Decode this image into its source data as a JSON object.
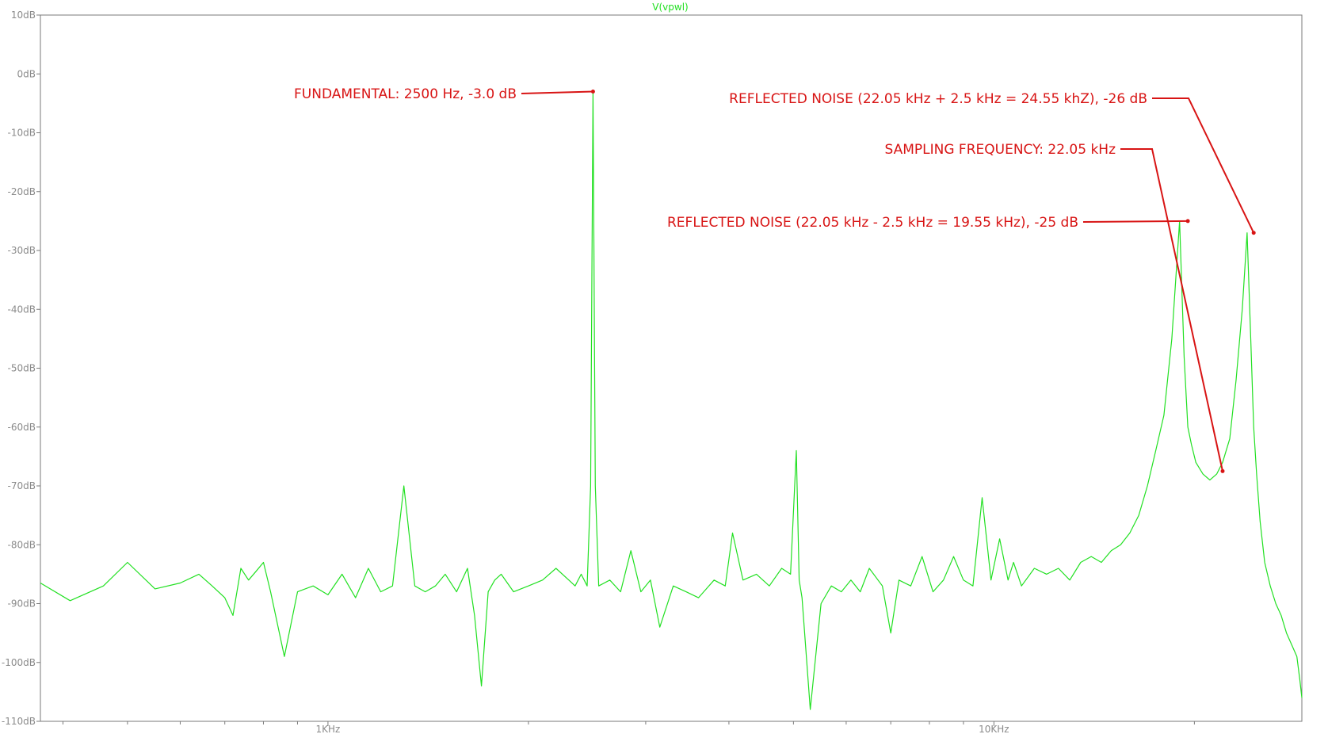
{
  "chart_data": {
    "type": "line",
    "title": "V(vpwl)",
    "x_scale": "log",
    "xlim": [
      370,
      29000
    ],
    "ylim": [
      -110,
      10
    ],
    "x_tick_labels": [
      {
        "value": 1000,
        "label": "1KHz"
      },
      {
        "value": 10000,
        "label": "10KHz"
      }
    ],
    "x_minor_ticks": [
      400,
      500,
      600,
      700,
      800,
      900,
      2000,
      3000,
      4000,
      5000,
      6000,
      7000,
      8000,
      9000,
      20000
    ],
    "y_ticks": [
      {
        "value": 10,
        "label": "10dB"
      },
      {
        "value": 0,
        "label": "0dB"
      },
      {
        "value": -10,
        "label": "-10dB"
      },
      {
        "value": -20,
        "label": "-20dB"
      },
      {
        "value": -30,
        "label": "-30dB"
      },
      {
        "value": -40,
        "label": "-40dB"
      },
      {
        "value": -50,
        "label": "-50dB"
      },
      {
        "value": -60,
        "label": "-60dB"
      },
      {
        "value": -70,
        "label": "-70dB"
      },
      {
        "value": -80,
        "label": "-80dB"
      },
      {
        "value": -90,
        "label": "-90dB"
      },
      {
        "value": -100,
        "label": "-100dB"
      },
      {
        "value": -110,
        "label": "-110dB"
      }
    ],
    "grid": false,
    "series": [
      {
        "name": "V(vpwl)",
        "color": "#22e022",
        "x": [
          370,
          410,
          460,
          500,
          550,
          600,
          640,
          670,
          700,
          720,
          740,
          760,
          780,
          800,
          820,
          860,
          900,
          950,
          1000,
          1050,
          1100,
          1150,
          1200,
          1250,
          1300,
          1350,
          1400,
          1450,
          1500,
          1560,
          1620,
          1660,
          1700,
          1740,
          1780,
          1820,
          1900,
          2000,
          2100,
          2200,
          2300,
          2350,
          2400,
          2450,
          2480,
          2500,
          2520,
          2550,
          2650,
          2750,
          2850,
          2950,
          3050,
          3150,
          3300,
          3450,
          3600,
          3800,
          3950,
          4050,
          4200,
          4400,
          4600,
          4800,
          4950,
          5050,
          5100,
          5150,
          5300,
          5500,
          5700,
          5900,
          6100,
          6300,
          6500,
          6800,
          7000,
          7200,
          7500,
          7800,
          8100,
          8400,
          8700,
          9000,
          9300,
          9600,
          9900,
          10200,
          10500,
          10700,
          11000,
          11500,
          12000,
          12500,
          13000,
          13500,
          14000,
          14500,
          15000,
          15500,
          16000,
          16500,
          17000,
          17500,
          18000,
          18500,
          19000,
          19300,
          19550,
          19800,
          20100,
          20600,
          21100,
          21600,
          22050,
          22600,
          23100,
          23600,
          24000,
          24300,
          24550,
          24800,
          25100,
          25500,
          26000,
          26500,
          27000,
          27500,
          28000,
          28500,
          28800,
          29000
        ],
        "y": [
          -86.5,
          -89.5,
          -87,
          -83,
          -87.5,
          -86.5,
          -85,
          -87,
          -89,
          -92,
          -84,
          -86,
          -84.5,
          -83,
          -88,
          -99,
          -88,
          -87,
          -88.5,
          -85,
          -89,
          -84,
          -88,
          -87,
          -70,
          -87,
          -88,
          -87,
          -85,
          -88,
          -84,
          -92,
          -104,
          -88,
          -86,
          -85,
          -88,
          -87,
          -86,
          -84,
          -86,
          -87,
          -85,
          -87,
          -70,
          -3,
          -70,
          -87,
          -86,
          -88,
          -81,
          -88,
          -86,
          -94,
          -87,
          -88,
          -89,
          -86,
          -87,
          -78,
          -86,
          -85,
          -87,
          -84,
          -85,
          -64,
          -86,
          -89,
          -108,
          -90,
          -87,
          -88,
          -86,
          -88,
          -84,
          -87,
          -95,
          -86,
          -87,
          -82,
          -88,
          -86,
          -82,
          -86,
          -87,
          -72,
          -86,
          -79,
          -86,
          -83,
          -87,
          -84,
          -85,
          -84,
          -86,
          -83,
          -82,
          -83,
          -81,
          -80,
          -78,
          -75,
          -70,
          -64,
          -58,
          -45,
          -25,
          -48,
          -60,
          -63,
          -66,
          -68,
          -69,
          -68,
          -66,
          -62,
          -52,
          -40,
          -27,
          -45,
          -60,
          -68,
          -76,
          -83,
          -87,
          -90,
          -92,
          -95,
          -97,
          -99,
          -103,
          -106
        ]
      }
    ],
    "annotations": [
      {
        "text": "FUNDAMENTAL:  2500 Hz, -3.0 dB",
        "x": 2500,
        "y": -3
      },
      {
        "text": "REFLECTED NOISE (22.05 kHz + 2.5 kHz = 24.55 khZ), -26 dB",
        "x": 24550,
        "y": -27
      },
      {
        "text": "SAMPLING FREQUENCY: 22.05 kHz",
        "x": 22050,
        "y": -67.5
      },
      {
        "text": "REFLECTED NOISE (22.05 kHz - 2.5 kHz = 19.55 kHz), -25 dB",
        "x": 19550,
        "y": -25
      }
    ]
  }
}
